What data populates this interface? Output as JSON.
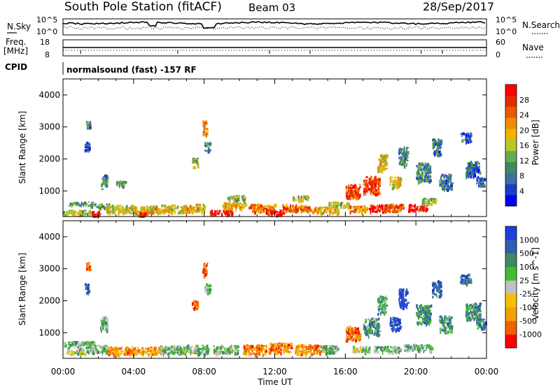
{
  "header": {
    "station": "South Pole Station (fitACF)",
    "beam": "Beam 03",
    "date": "28/Sep/2017"
  },
  "noise_panel": {
    "left_label": "N.Sky",
    "left_ticks": [
      "10^5",
      "10^0"
    ],
    "right_label": "N.Search",
    "right_ticks": [
      "10^5",
      "10^0"
    ]
  },
  "freq_panel": {
    "left_label_1": "Freq.",
    "left_label_2": "[MHz]",
    "left_ticks": [
      "18",
      "8"
    ],
    "right_label": "Nave",
    "right_ticks": [
      "60",
      "0"
    ]
  },
  "cpid": {
    "label": "CPID",
    "text": "normalsound (fast) -157 RF"
  },
  "chart_data": [
    {
      "type": "heatmap",
      "title": "",
      "xlabel": "",
      "ylabel": "Slant Range [km]",
      "xlim": [
        0,
        24
      ],
      "ylim": [
        200,
        4500
      ],
      "y_ticks": [
        "1000",
        "2000",
        "3000",
        "4000"
      ],
      "colorbar": {
        "label": "Power [dB]",
        "ticks": [
          "4",
          "8",
          "12",
          "16",
          "20",
          "24",
          "28"
        ],
        "colors": [
          "#0000ff",
          "#1a3dcc",
          "#3f6fa0",
          "#3e8a5a",
          "#6aa84f",
          "#b6c925",
          "#f0b400",
          "#f08c00",
          "#e85a00",
          "#e62a00",
          "#ff0000"
        ]
      },
      "patches": [
        {
          "t": 0.0,
          "r": 350,
          "w": 1.6,
          "h": 140,
          "v": 0.45
        },
        {
          "t": 0.2,
          "r": 620,
          "w": 1.5,
          "h": 110,
          "v": 0.35
        },
        {
          "t": 1.6,
          "r": 300,
          "w": 0.5,
          "h": 180,
          "v": 0.95
        },
        {
          "t": 1.5,
          "r": 550,
          "w": 1.2,
          "h": 130,
          "v": 0.35
        },
        {
          "t": 2.1,
          "r": 1300,
          "w": 0.4,
          "h": 450,
          "v": 0.3
        },
        {
          "t": 1.2,
          "r": 2400,
          "w": 0.25,
          "h": 300,
          "v": 0.15
        },
        {
          "t": 1.3,
          "r": 3100,
          "w": 0.2,
          "h": 250,
          "v": 0.35
        },
        {
          "t": 2.4,
          "r": 450,
          "w": 1.6,
          "h": 260,
          "v": 0.55
        },
        {
          "t": 3.0,
          "r": 1250,
          "w": 0.5,
          "h": 160,
          "v": 0.35
        },
        {
          "t": 4.0,
          "r": 450,
          "w": 1.5,
          "h": 220,
          "v": 0.6
        },
        {
          "t": 4.2,
          "r": 300,
          "w": 0.6,
          "h": 120,
          "v": 0.9
        },
        {
          "t": 5.5,
          "r": 470,
          "w": 1.5,
          "h": 230,
          "v": 0.55
        },
        {
          "t": 6.8,
          "r": 480,
          "w": 1.2,
          "h": 260,
          "v": 0.6
        },
        {
          "t": 7.3,
          "r": 1900,
          "w": 0.35,
          "h": 300,
          "v": 0.45
        },
        {
          "t": 7.9,
          "r": 3000,
          "w": 0.25,
          "h": 450,
          "v": 0.7
        },
        {
          "t": 8.0,
          "r": 2400,
          "w": 0.3,
          "h": 300,
          "v": 0.3
        },
        {
          "t": 8.3,
          "r": 350,
          "w": 1.3,
          "h": 150,
          "v": 0.95
        },
        {
          "t": 9.0,
          "r": 550,
          "w": 1.4,
          "h": 200,
          "v": 0.65
        },
        {
          "t": 9.3,
          "r": 800,
          "w": 1.0,
          "h": 170,
          "v": 0.45
        },
        {
          "t": 10.5,
          "r": 500,
          "w": 1.5,
          "h": 250,
          "v": 0.7
        },
        {
          "t": 11.5,
          "r": 350,
          "w": 1.0,
          "h": 150,
          "v": 0.95
        },
        {
          "t": 12.4,
          "r": 500,
          "w": 1.2,
          "h": 200,
          "v": 0.8
        },
        {
          "t": 13.4,
          "r": 450,
          "w": 1.0,
          "h": 200,
          "v": 0.7
        },
        {
          "t": 13.0,
          "r": 800,
          "w": 0.9,
          "h": 140,
          "v": 0.5
        },
        {
          "t": 14.3,
          "r": 420,
          "w": 1.3,
          "h": 200,
          "v": 0.6
        },
        {
          "t": 15.0,
          "r": 600,
          "w": 1.2,
          "h": 150,
          "v": 0.5
        },
        {
          "t": 16.0,
          "r": 1000,
          "w": 0.8,
          "h": 450,
          "v": 0.85
        },
        {
          "t": 16.2,
          "r": 450,
          "w": 1.0,
          "h": 200,
          "v": 0.7
        },
        {
          "t": 17.0,
          "r": 1200,
          "w": 0.9,
          "h": 550,
          "v": 0.85
        },
        {
          "t": 17.3,
          "r": 480,
          "w": 1.0,
          "h": 220,
          "v": 0.95
        },
        {
          "t": 17.8,
          "r": 1900,
          "w": 0.5,
          "h": 550,
          "v": 0.55
        },
        {
          "t": 18.2,
          "r": 500,
          "w": 1.1,
          "h": 220,
          "v": 0.8
        },
        {
          "t": 18.5,
          "r": 1300,
          "w": 0.6,
          "h": 350,
          "v": 0.55
        },
        {
          "t": 19.0,
          "r": 2100,
          "w": 0.5,
          "h": 600,
          "v": 0.3
        },
        {
          "t": 19.5,
          "r": 500,
          "w": 1.1,
          "h": 200,
          "v": 0.95
        },
        {
          "t": 20.0,
          "r": 1600,
          "w": 0.8,
          "h": 600,
          "v": 0.3
        },
        {
          "t": 20.3,
          "r": 700,
          "w": 0.8,
          "h": 200,
          "v": 0.45
        },
        {
          "t": 20.9,
          "r": 2400,
          "w": 0.5,
          "h": 500,
          "v": 0.25
        },
        {
          "t": 21.3,
          "r": 1300,
          "w": 0.7,
          "h": 500,
          "v": 0.25
        },
        {
          "t": 22.5,
          "r": 2700,
          "w": 0.6,
          "h": 300,
          "v": 0.2
        },
        {
          "t": 22.8,
          "r": 1700,
          "w": 0.8,
          "h": 500,
          "v": 0.2
        },
        {
          "t": 23.4,
          "r": 1300,
          "w": 0.5,
          "h": 300,
          "v": 0.2
        }
      ]
    },
    {
      "type": "heatmap",
      "title": "",
      "xlabel": "Time UT",
      "ylabel": "Slant Range [km]",
      "xlim": [
        0,
        24
      ],
      "ylim": [
        200,
        4500
      ],
      "x_ticks": [
        "00:00",
        "04:00",
        "08:00",
        "12:00",
        "16:00",
        "20:00",
        "00:00"
      ],
      "y_ticks": [
        "1000",
        "2000",
        "3000",
        "4000"
      ],
      "colorbar": {
        "label": "Velocity [m s^-1]",
        "ticks": [
          "-1000",
          "-500",
          "-100",
          "-25",
          "25",
          "100",
          "500",
          "1000"
        ],
        "colors": [
          "#ff0000",
          "#f06000",
          "#f0a000",
          "#f5c000",
          "#c0c0c0",
          "#44bb33",
          "#3f8a5f",
          "#2f5fb0",
          "#1f3fdd"
        ]
      },
      "patches": [
        {
          "t": 0.0,
          "r": 650,
          "w": 1.8,
          "h": 200,
          "v": 0.62
        },
        {
          "t": 0.1,
          "r": 420,
          "w": 1.6,
          "h": 130,
          "v": 0.55
        },
        {
          "t": 1.6,
          "r": 500,
          "w": 1.0,
          "h": 260,
          "v": 0.6
        },
        {
          "t": 2.1,
          "r": 1300,
          "w": 0.4,
          "h": 450,
          "v": 0.62
        },
        {
          "t": 1.2,
          "r": 2400,
          "w": 0.25,
          "h": 300,
          "v": 0.85
        },
        {
          "t": 1.3,
          "r": 3100,
          "w": 0.2,
          "h": 250,
          "v": 0.15
        },
        {
          "t": 2.5,
          "r": 450,
          "w": 1.6,
          "h": 260,
          "v": 0.25
        },
        {
          "t": 4.1,
          "r": 450,
          "w": 1.6,
          "h": 250,
          "v": 0.3
        },
        {
          "t": 5.5,
          "r": 500,
          "w": 1.5,
          "h": 250,
          "v": 0.6
        },
        {
          "t": 7.0,
          "r": 500,
          "w": 1.2,
          "h": 260,
          "v": 0.6
        },
        {
          "t": 7.3,
          "r": 1900,
          "w": 0.35,
          "h": 300,
          "v": 0.15
        },
        {
          "t": 7.9,
          "r": 3000,
          "w": 0.25,
          "h": 450,
          "v": 0.15
        },
        {
          "t": 8.0,
          "r": 2400,
          "w": 0.3,
          "h": 300,
          "v": 0.62
        },
        {
          "t": 8.5,
          "r": 500,
          "w": 1.4,
          "h": 250,
          "v": 0.6
        },
        {
          "t": 10.2,
          "r": 500,
          "w": 1.3,
          "h": 300,
          "v": 0.25
        },
        {
          "t": 11.6,
          "r": 550,
          "w": 1.3,
          "h": 300,
          "v": 0.25
        },
        {
          "t": 13.1,
          "r": 500,
          "w": 1.5,
          "h": 300,
          "v": 0.25
        },
        {
          "t": 14.6,
          "r": 500,
          "w": 1.0,
          "h": 250,
          "v": 0.6
        },
        {
          "t": 16.0,
          "r": 1000,
          "w": 0.8,
          "h": 450,
          "v": 0.2
        },
        {
          "t": 16.4,
          "r": 500,
          "w": 1.0,
          "h": 200,
          "v": 0.55
        },
        {
          "t": 17.0,
          "r": 1200,
          "w": 0.9,
          "h": 550,
          "v": 0.7
        },
        {
          "t": 17.6,
          "r": 500,
          "w": 1.5,
          "h": 200,
          "v": 0.62
        },
        {
          "t": 17.8,
          "r": 1900,
          "w": 0.5,
          "h": 550,
          "v": 0.65
        },
        {
          "t": 18.5,
          "r": 1300,
          "w": 0.6,
          "h": 400,
          "v": 0.9
        },
        {
          "t": 19.0,
          "r": 2100,
          "w": 0.5,
          "h": 600,
          "v": 0.9
        },
        {
          "t": 19.3,
          "r": 550,
          "w": 1.6,
          "h": 200,
          "v": 0.62
        },
        {
          "t": 20.0,
          "r": 1600,
          "w": 0.8,
          "h": 600,
          "v": 0.72
        },
        {
          "t": 20.9,
          "r": 2400,
          "w": 0.5,
          "h": 500,
          "v": 0.85
        },
        {
          "t": 21.3,
          "r": 1300,
          "w": 0.7,
          "h": 500,
          "v": 0.7
        },
        {
          "t": 22.5,
          "r": 2700,
          "w": 0.6,
          "h": 300,
          "v": 0.85
        },
        {
          "t": 22.8,
          "r": 1700,
          "w": 0.8,
          "h": 500,
          "v": 0.7
        },
        {
          "t": 23.4,
          "r": 1300,
          "w": 0.5,
          "h": 300,
          "v": 0.75
        }
      ]
    }
  ]
}
